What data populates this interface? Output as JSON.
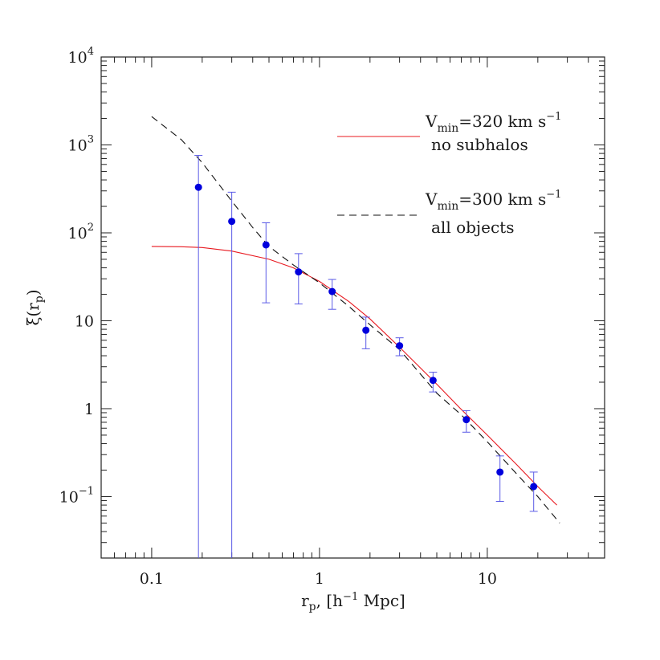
{
  "chart_data": {
    "type": "scatter",
    "title": "",
    "xlabel": "r_p, [h^-1 Mpc]",
    "ylabel": "ξ(r_p)",
    "xscale": "log",
    "yscale": "log",
    "xlim": [
      0.05,
      50
    ],
    "ylim": [
      0.02,
      10000
    ],
    "grid": false,
    "legend_position": "top-right",
    "x_ticks": [
      {
        "value": 0.1,
        "label": "0.1"
      },
      {
        "value": 1,
        "label": "1"
      },
      {
        "value": 10,
        "label": "10"
      }
    ],
    "y_ticks": [
      {
        "value": 0.1,
        "label": "10",
        "sup": "−1"
      },
      {
        "value": 1,
        "label": "1",
        "sup": ""
      },
      {
        "value": 10,
        "label": "10",
        "sup": ""
      },
      {
        "value": 100,
        "label": "10",
        "sup": "2"
      },
      {
        "value": 1000,
        "label": "10",
        "sup": "3"
      },
      {
        "value": 10000,
        "label": "10",
        "sup": "4"
      }
    ],
    "points": {
      "color": "#0000dd",
      "errorbar_color": "#5a5ae6",
      "x": [
        0.19,
        0.3,
        0.48,
        0.75,
        1.19,
        1.89,
        3.0,
        4.75,
        7.5,
        11.9,
        18.9
      ],
      "y": [
        330,
        135,
        73,
        36,
        21.5,
        7.8,
        5.2,
        2.1,
        0.75,
        0.19,
        0.13
      ],
      "y_lower": [
        0.02,
        0.02,
        16,
        15.5,
        13.5,
        4.8,
        4.0,
        1.55,
        0.54,
        0.088,
        0.068
      ],
      "y_upper": [
        760,
        290,
        130,
        58,
        29.5,
        11,
        6.4,
        2.6,
        0.95,
        0.29,
        0.19
      ]
    },
    "series": [
      {
        "name_line1": "V",
        "name_sub": "min",
        "name_rest": "=320 km s",
        "name_sup": "−1",
        "name_line2": "no subhalos",
        "style": "solid",
        "color": "#e8181f",
        "x": [
          0.1,
          0.15,
          0.2,
          0.3,
          0.5,
          0.7,
          1.0,
          1.5,
          2.0,
          3.0,
          5.0,
          7.0,
          10.0,
          15.0,
          20.0,
          26.0
        ],
        "y": [
          70,
          69.5,
          68,
          62,
          50,
          40,
          28,
          16.5,
          10.5,
          5.0,
          1.9,
          0.98,
          0.5,
          0.23,
          0.13,
          0.08
        ]
      },
      {
        "name_line1": "V",
        "name_sub": "min",
        "name_rest": "=300 km s",
        "name_sup": "−1",
        "name_line2": "all objects",
        "style": "dashed",
        "color": "#111111",
        "x": [
          0.1,
          0.15,
          0.2,
          0.3,
          0.4,
          0.5,
          0.7,
          1.0,
          1.5,
          2.0,
          3.0,
          5.0,
          7.0,
          10.0,
          15.0,
          20.0,
          27.0
        ],
        "y": [
          2100,
          1150,
          630,
          230,
          115,
          70,
          43,
          27,
          14.5,
          9.0,
          4.7,
          1.5,
          0.85,
          0.42,
          0.18,
          0.1,
          0.05
        ]
      }
    ]
  }
}
